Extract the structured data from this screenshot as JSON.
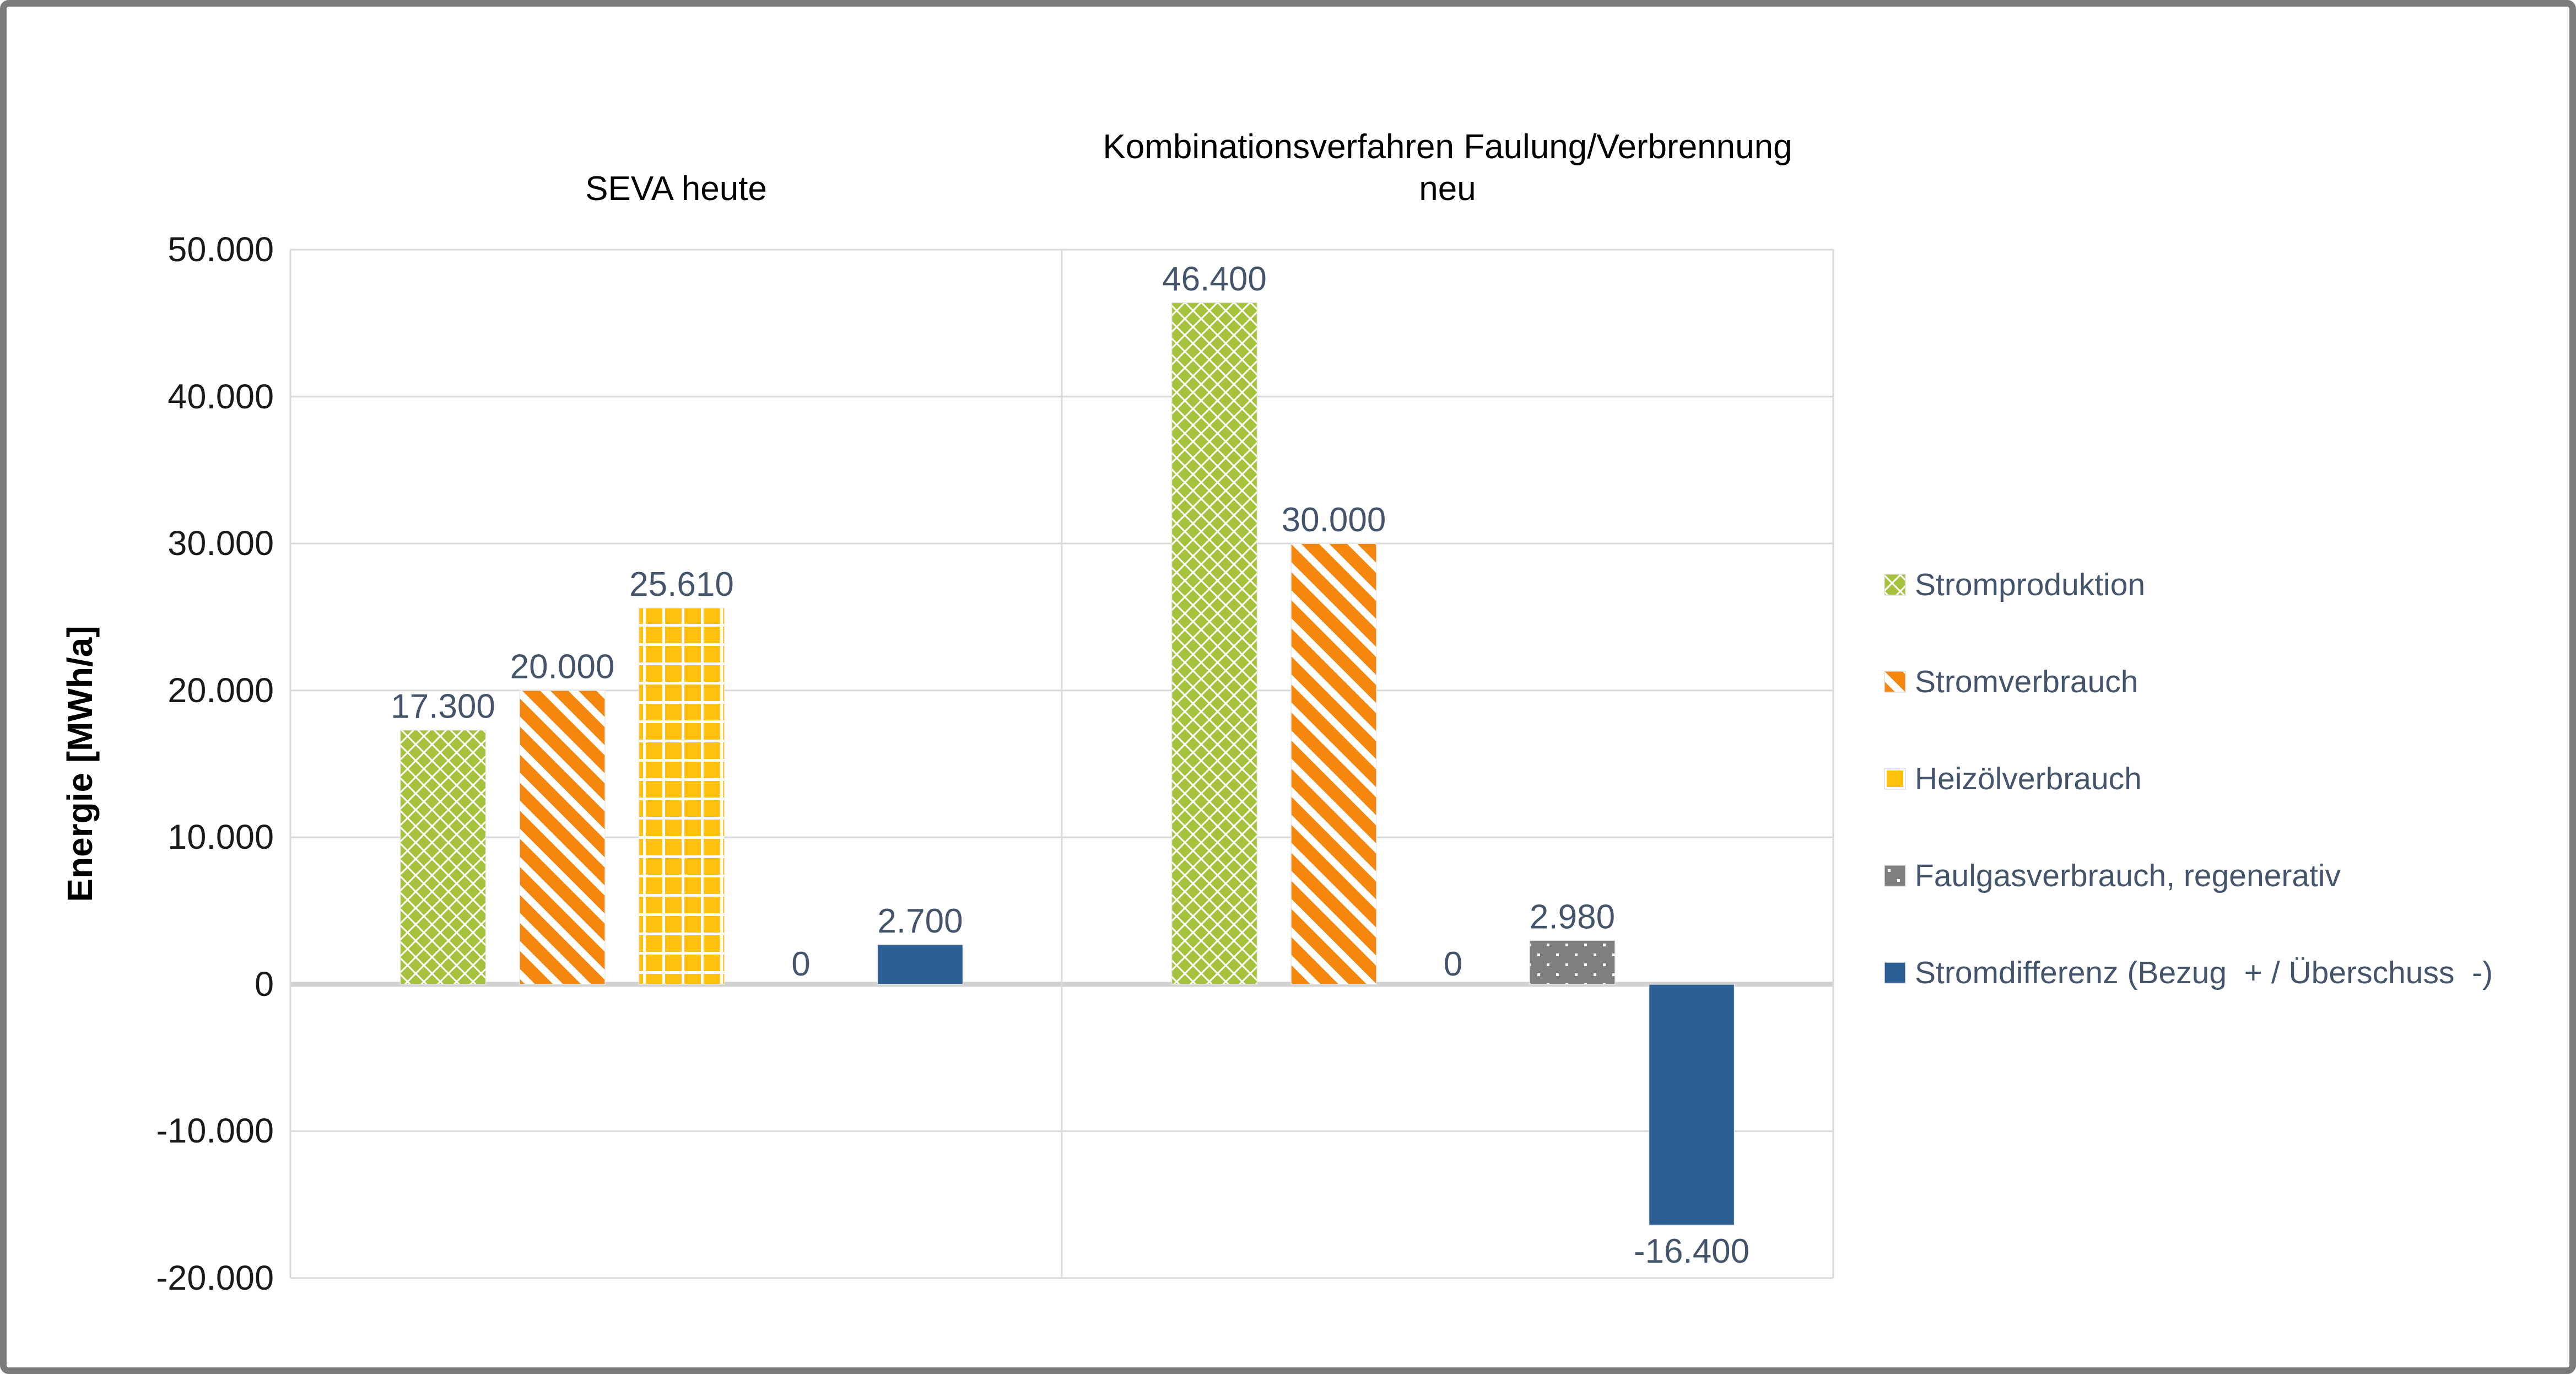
{
  "chart_data": {
    "type": "bar",
    "title": "",
    "ylabel": "Energie [MWh/a]",
    "xlabel": "",
    "ylim": [
      -20000,
      50000
    ],
    "grid": true,
    "legend_position": "right",
    "yticks": [
      {
        "value": 50000,
        "label": "50.000"
      },
      {
        "value": 40000,
        "label": "40.000"
      },
      {
        "value": 30000,
        "label": "30.000"
      },
      {
        "value": 20000,
        "label": "20.000"
      },
      {
        "value": 10000,
        "label": "10.000"
      },
      {
        "value": 0,
        "label": "0"
      },
      {
        "value": -10000,
        "label": "-10.000"
      },
      {
        "value": -20000,
        "label": "-20.000"
      }
    ],
    "series": [
      {
        "name": "Stromproduktion",
        "swatch": "green-lattice",
        "color": "#A5C23C"
      },
      {
        "name": "Stromverbrauch",
        "swatch": "orange-stripe",
        "color": "#F5870F"
      },
      {
        "name": "Heizölverbrauch",
        "swatch": "gold-grid",
        "color": "#FFC010"
      },
      {
        "name": "Faulgasverbrauch, regenerativ",
        "swatch": "gray-dots",
        "color": "#7F7F7F"
      },
      {
        "name": "Stromdifferenz (Bezug  + / Überschuss  -)",
        "swatch": "solid-blue",
        "color": "#2C5F94"
      }
    ],
    "groups": [
      {
        "title": "SEVA heute",
        "values": [
          17300,
          20000,
          25610,
          0,
          2700
        ],
        "labels": [
          "17.300",
          "20.000",
          "25.610",
          "0",
          "2.700"
        ]
      },
      {
        "title": "Kombinationsverfahren Faulung/Verbrennung\nneu",
        "values": [
          46400,
          30000,
          0,
          2980,
          -16400
        ],
        "labels": [
          "46.400",
          "30.000",
          "0",
          "2.980",
          "-16.400"
        ]
      }
    ],
    "colors": {
      "label": "#44546A",
      "grid": "#D9D9D9",
      "zero_axis": "#D2D2D2",
      "tick_text": "#1A1A1A"
    }
  }
}
